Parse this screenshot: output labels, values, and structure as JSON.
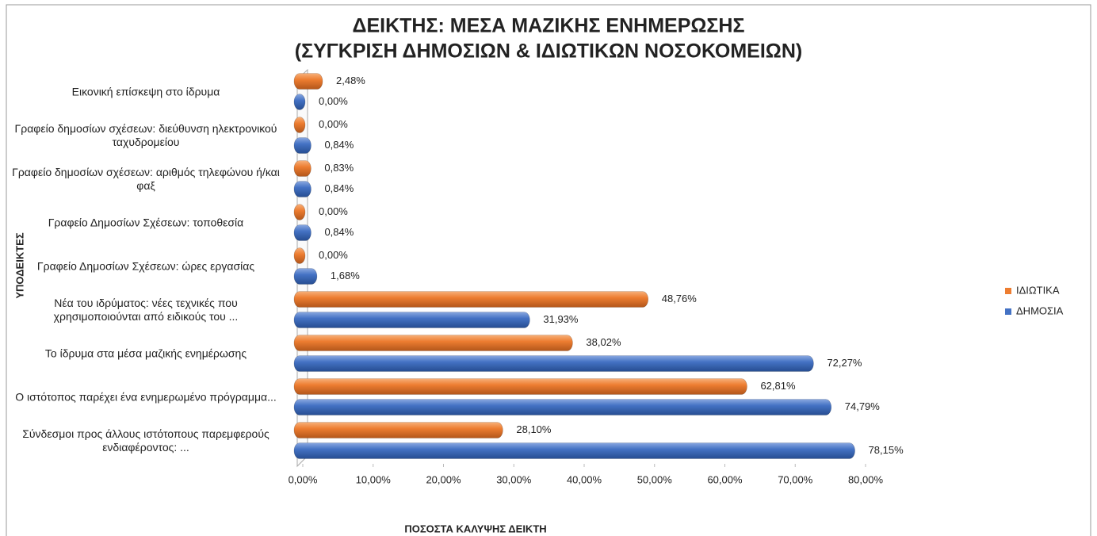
{
  "chart_data": {
    "type": "hbar",
    "title": "ΔΕΙΚΤΗΣ: ΜΕΣΑ ΜΑΖΙΚΗΣ ΕΝΗΜΕΡΩΣΗΣ",
    "subtitle": "(ΣΥΓΚΡΙΣΗ ΔΗΜΟΣΙΩΝ & ΙΔΙΩΤΙΚΩΝ ΝΟΣΟΚΟΜΕΙΩΝ)",
    "x_label": "ΠΟΣΟΣΤΑ ΚΑΛΥΨΗΣ ΔΕΙΚΤΗ",
    "y_label": "ΥΠΟΔΕΙΚΤΕΣ",
    "categories": [
      "Εικονική επίσκεψη στο ίδρυμα",
      "Γραφείο δημοσίων σχέσεων: διεύθυνση ηλεκτρονικού ταχυδρομείου",
      "Γραφείο δημοσίων σχέσεων: αριθμός τηλεφώνου ή/και φαξ",
      "Γραφείο Δημοσίων Σχέσεων: τοποθεσία",
      "Γραφείο Δημοσίων Σχέσεων: ώρες εργασίας",
      "Νέα του ιδρύματος: νέες τεχνικές που χρησιμοποιούνται από ειδικούς του ...",
      "Το ίδρυμα στα μέσα μαζικής ενημέρωσης",
      "Ο ιστότοπος παρέχει ένα ενημερωμένο πρόγραμμα...",
      "Σύνδεσμοι προς άλλους ιστότοπους παρεμφερούς ενδιαφέροντος: ..."
    ],
    "series": [
      {
        "name": "ΙΔΙΩΤΙΚΑ",
        "color": "#ed7d31",
        "values": [
          2.48,
          0,
          0.83,
          0,
          0,
          48.76,
          38.02,
          62.81,
          28.1
        ],
        "value_labels": [
          "2,48%",
          "0,00%",
          "0,83%",
          "0,00%",
          "0,00%",
          "48,76%",
          "38,02%",
          "62,81%",
          "28,10%"
        ]
      },
      {
        "name": "ΔΗΜΟΣΙΑ",
        "color": "#4472c4",
        "values": [
          0,
          0.84,
          0.84,
          0.84,
          1.68,
          31.93,
          72.27,
          74.79,
          78.15
        ],
        "value_labels": [
          "0,00%",
          "0,84%",
          "0,84%",
          "0,84%",
          "1,68%",
          "31,93%",
          "72,27%",
          "74,79%",
          "78,15%"
        ]
      }
    ],
    "xlim": [
      0,
      80
    ],
    "xticks": [
      {
        "value": 0,
        "label": "0,00%"
      },
      {
        "value": 10,
        "label": "10,00%"
      },
      {
        "value": 20,
        "label": "20,00%"
      },
      {
        "value": 30,
        "label": "30,00%"
      },
      {
        "value": 40,
        "label": "40,00%"
      },
      {
        "value": 50,
        "label": "50,00%"
      },
      {
        "value": 60,
        "label": "60,00%"
      },
      {
        "value": 70,
        "label": "70,00%"
      },
      {
        "value": 80,
        "label": "80,00%"
      }
    ],
    "legend": "right"
  }
}
